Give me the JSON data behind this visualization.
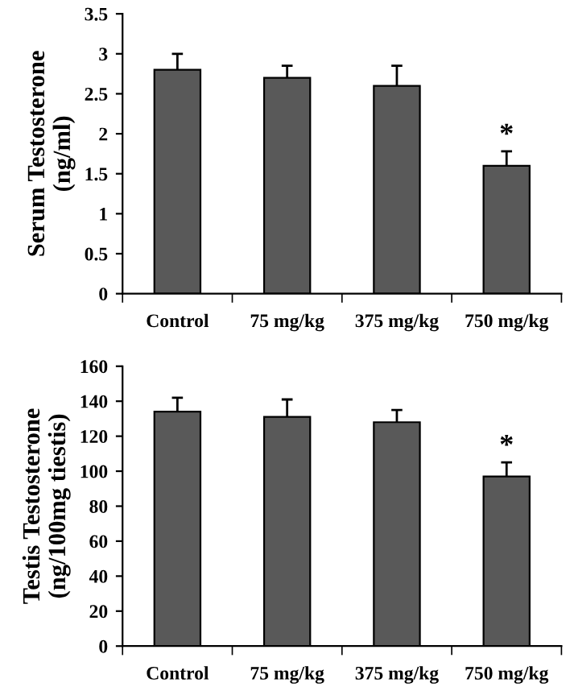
{
  "chart_data": [
    {
      "type": "bar",
      "ylabel": "Serum Testosterone\n(ng/ml)",
      "categories": [
        "Control",
        "75 mg/kg",
        "375 mg/kg",
        "750 mg/kg"
      ],
      "series": [
        {
          "color": "#595959",
          "values": [
            2.8,
            2.7,
            2.6,
            1.6
          ],
          "errors": [
            [
              2.8,
              3.0
            ],
            [
              2.7,
              2.85
            ],
            [
              2.6,
              2.85
            ],
            [
              1.6,
              1.78
            ]
          ]
        }
      ],
      "ylim": [
        0,
        3.5
      ],
      "yticks": [
        0,
        0.5,
        1,
        1.5,
        2,
        2.5,
        3,
        3.5
      ],
      "grid": false,
      "legend": false,
      "annotations": [
        {
          "text": "*",
          "x": "750 mg/kg",
          "y": 1.78
        }
      ]
    },
    {
      "type": "bar",
      "ylabel": "Testis Testosterone\n(ng/100mg tiestis)",
      "categories": [
        "Control",
        "75 mg/kg",
        "375 mg/kg",
        "750 mg/kg"
      ],
      "series": [
        {
          "color": "#595959",
          "values": [
            134,
            131,
            128,
            97
          ],
          "errors": [
            [
              134,
              142
            ],
            [
              131,
              141
            ],
            [
              128,
              135
            ],
            [
              97,
              105
            ]
          ]
        }
      ],
      "ylim": [
        0,
        160
      ],
      "yticks": [
        0,
        20,
        40,
        60,
        80,
        100,
        120,
        140,
        160
      ],
      "grid": false,
      "legend": false,
      "annotations": [
        {
          "text": "*",
          "x": "750 mg/kg",
          "y": 105
        }
      ]
    }
  ]
}
